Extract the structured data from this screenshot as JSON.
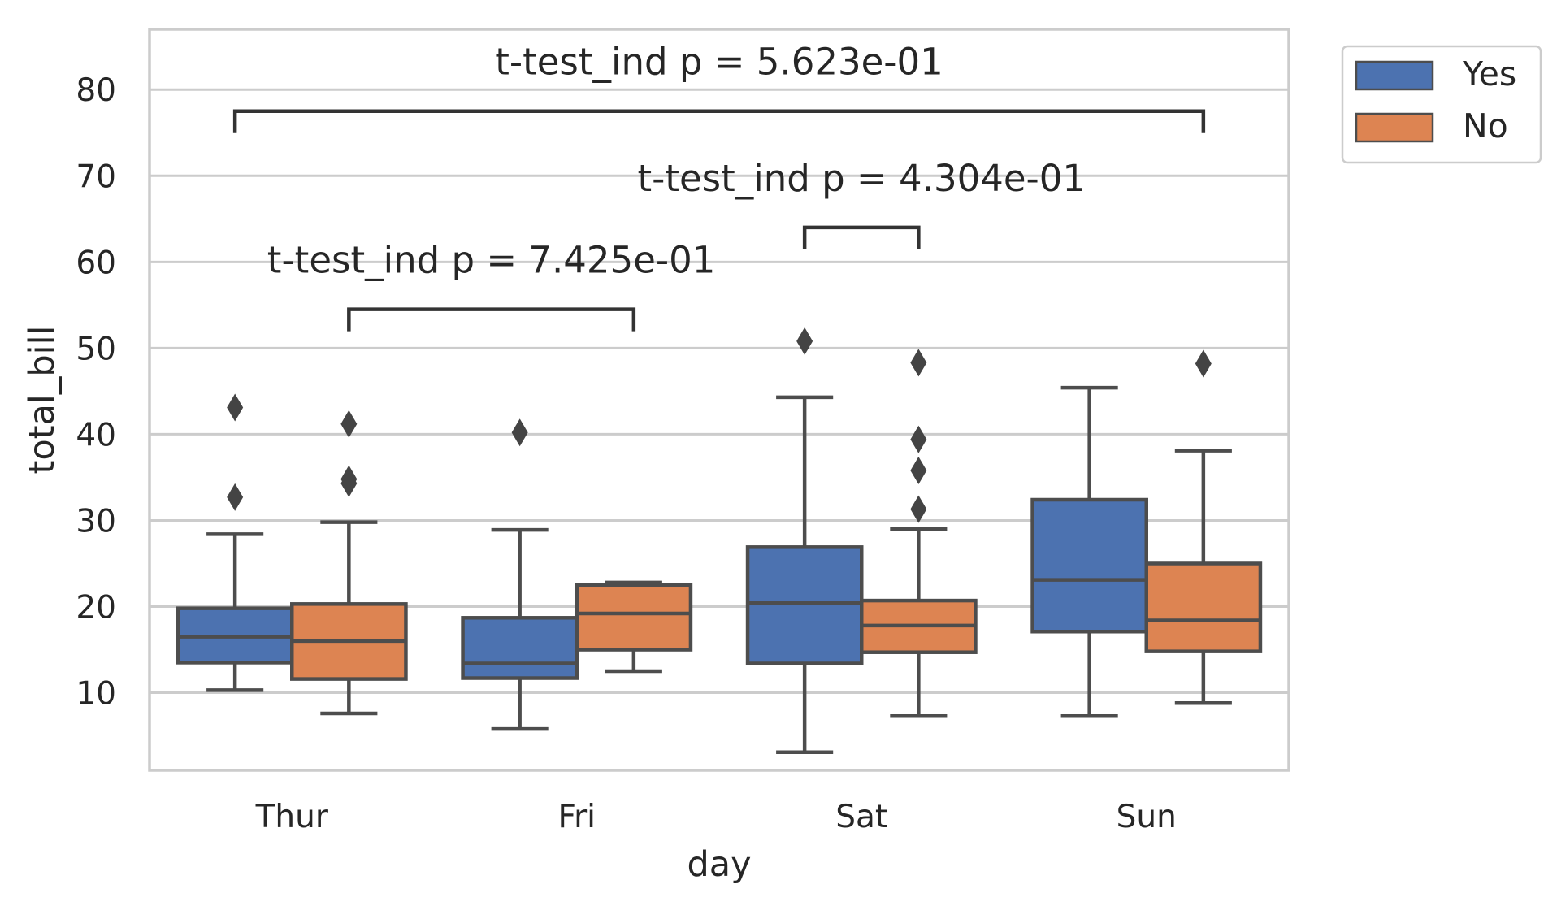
{
  "chart_data": {
    "type": "boxplot",
    "title": "",
    "xlabel": "day",
    "ylabel": "total_bill",
    "categories": [
      "Thur",
      "Fri",
      "Sat",
      "Sun"
    ],
    "ylim": [
      1,
      87
    ],
    "yticks": [
      10,
      20,
      30,
      40,
      50,
      60,
      70,
      80
    ],
    "grid": true,
    "legend": {
      "placement": "outside-top-right",
      "entries": [
        {
          "name": "Yes",
          "color": "#4c72b0"
        },
        {
          "name": "No",
          "color": "#dd8452"
        }
      ]
    },
    "series": [
      {
        "name": "Yes",
        "color": "#4c72b0",
        "boxes": [
          {
            "category": "Thur",
            "whisker_low": 10.3,
            "q1": 13.5,
            "median": 16.5,
            "q3": 19.8,
            "whisker_high": 28.4,
            "outliers": [
              32.7,
              43.1
            ]
          },
          {
            "category": "Fri",
            "whisker_low": 5.8,
            "q1": 11.7,
            "median": 13.4,
            "q3": 18.7,
            "whisker_high": 28.9,
            "outliers": [
              40.2
            ]
          },
          {
            "category": "Sat",
            "whisker_low": 3.1,
            "q1": 13.4,
            "median": 20.4,
            "q3": 26.9,
            "whisker_high": 44.3,
            "outliers": [
              50.8
            ]
          },
          {
            "category": "Sun",
            "whisker_low": 7.3,
            "q1": 17.1,
            "median": 23.1,
            "q3": 32.4,
            "whisker_high": 45.4,
            "outliers": []
          }
        ]
      },
      {
        "name": "No",
        "color": "#dd8452",
        "boxes": [
          {
            "category": "Thur",
            "whisker_low": 7.6,
            "q1": 11.6,
            "median": 16.0,
            "q3": 20.3,
            "whisker_high": 29.8,
            "outliers": [
              34.3,
              34.8,
              41.2
            ]
          },
          {
            "category": "Fri",
            "whisker_low": 12.5,
            "q1": 15.0,
            "median": 19.2,
            "q3": 22.5,
            "whisker_high": 22.8,
            "outliers": []
          },
          {
            "category": "Sat",
            "whisker_low": 7.3,
            "q1": 14.7,
            "median": 17.8,
            "q3": 20.7,
            "whisker_high": 29.0,
            "outliers": [
              31.3,
              35.8,
              39.4,
              48.3
            ]
          },
          {
            "category": "Sun",
            "whisker_low": 8.8,
            "q1": 14.8,
            "median": 18.4,
            "q3": 25.0,
            "whisker_high": 38.1,
            "outliers": [
              48.2
            ]
          }
        ]
      }
    ],
    "annotations": [
      {
        "text": "t-test_ind p = 7.425e-01",
        "from": {
          "category": "Thur",
          "series": "No"
        },
        "to": {
          "category": "Fri",
          "series": "No"
        },
        "y": 54.5
      },
      {
        "text": "t-test_ind p = 4.304e-01",
        "from": {
          "category": "Sat",
          "series": "Yes"
        },
        "to": {
          "category": "Sat",
          "series": "No"
        },
        "y": 64.0
      },
      {
        "text": "t-test_ind p = 5.623e-01",
        "from": {
          "category": "Thur",
          "series": "Yes"
        },
        "to": {
          "category": "Sun",
          "series": "No"
        },
        "y": 77.5
      }
    ]
  }
}
